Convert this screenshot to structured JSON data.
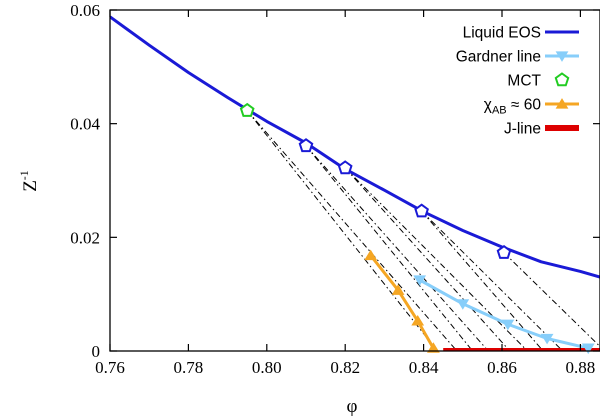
{
  "chart_data": {
    "type": "line",
    "xlabel": "φ",
    "ylabel": "Z",
    "ylabel_sup": "-1",
    "xlim": [
      0.76,
      0.885
    ],
    "ylim": [
      0,
      0.06
    ],
    "x_ticks": [
      "0.76",
      "0.78",
      "0.80",
      "0.82",
      "0.84",
      "0.86",
      "0.88"
    ],
    "x_tick_values": [
      0.76,
      0.78,
      0.8,
      0.82,
      0.84,
      0.86,
      0.88
    ],
    "y_ticks": [
      "0",
      "0.02",
      "0.04",
      "0.06"
    ],
    "y_tick_values": [
      0,
      0.02,
      0.04,
      0.06
    ],
    "legend_position": "top-right",
    "legend": [
      {
        "label": "Liquid EOS",
        "sub": "",
        "rest": "",
        "color": "#1a1ad6",
        "marker": "line"
      },
      {
        "label": "Gardner line",
        "sub": "",
        "rest": "",
        "color": "#87cefa",
        "marker": "triangle-down"
      },
      {
        "label": "MCT",
        "sub": "",
        "rest": "",
        "color": "#22cc22",
        "marker": "pentagon"
      },
      {
        "label": "χ",
        "sub": "AB",
        "rest": " ≈ 60",
        "color": "#f5a623",
        "marker": "triangle-up"
      },
      {
        "label": "J-line",
        "sub": "",
        "rest": "",
        "color": "#dd0000",
        "marker": "thick-line"
      }
    ],
    "series": [
      {
        "name": "Liquid EOS",
        "type": "line",
        "color": "#1a1ad6",
        "x": [
          0.76,
          0.77,
          0.78,
          0.79,
          0.8,
          0.81,
          0.82,
          0.83,
          0.84,
          0.85,
          0.86,
          0.87,
          0.88,
          0.885
        ],
        "y": [
          0.0588,
          0.0538,
          0.049,
          0.0446,
          0.0404,
          0.0366,
          0.032,
          0.0283,
          0.0245,
          0.0212,
          0.0183,
          0.0157,
          0.014,
          0.013
        ]
      },
      {
        "name": "Liquid EOS states",
        "type": "markers",
        "marker": "pentagon",
        "color": "#1a1ad6",
        "x": [
          0.81,
          0.82,
          0.8395,
          0.8605
        ],
        "y": [
          0.0361,
          0.0322,
          0.0246,
          0.0173
        ]
      },
      {
        "name": "MCT",
        "type": "markers",
        "marker": "pentagon",
        "color": "#22cc22",
        "x": [
          0.795
        ],
        "y": [
          0.0423
        ]
      },
      {
        "name": "Gardner line",
        "type": "line-markers",
        "marker": "triangle-down",
        "color": "#87cefa",
        "x": [
          0.839,
          0.85,
          0.8615,
          0.8715,
          0.882
        ],
        "y": [
          0.0125,
          0.0083,
          0.0047,
          0.0022,
          0.0005
        ]
      },
      {
        "name": "χAB ≈ 60",
        "type": "line-markers",
        "marker": "triangle-up",
        "color": "#f5a623",
        "x": [
          0.8265,
          0.8335,
          0.8385,
          0.8425
        ],
        "y": [
          0.0168,
          0.0107,
          0.0053,
          0.0005
        ]
      },
      {
        "name": "J-line",
        "type": "thick-line",
        "color": "#dd0000",
        "x": [
          0.845,
          0.885
        ],
        "y": [
          0.0,
          0.0
        ]
      }
    ],
    "dashdot_lines": [
      {
        "x": [
          0.795,
          0.8435
        ],
        "y": [
          0.0423,
          0.0
        ]
      },
      {
        "x": [
          0.795,
          0.8485
        ],
        "y": [
          0.0423,
          0.0
        ]
      },
      {
        "x": [
          0.81,
          0.8525
        ],
        "y": [
          0.0361,
          0.0
        ]
      },
      {
        "x": [
          0.81,
          0.8565
        ],
        "y": [
          0.0361,
          0.0
        ]
      },
      {
        "x": [
          0.82,
          0.862
        ],
        "y": [
          0.0322,
          0.0
        ]
      },
      {
        "x": [
          0.82,
          0.8665
        ],
        "y": [
          0.0322,
          0.0
        ]
      },
      {
        "x": [
          0.8395,
          0.8705
        ],
        "y": [
          0.0246,
          0.0
        ]
      },
      {
        "x": [
          0.8395,
          0.8755
        ],
        "y": [
          0.0246,
          0.0
        ]
      },
      {
        "x": [
          0.8605,
          0.885
        ],
        "y": [
          0.0173,
          0.0008
        ]
      }
    ]
  }
}
